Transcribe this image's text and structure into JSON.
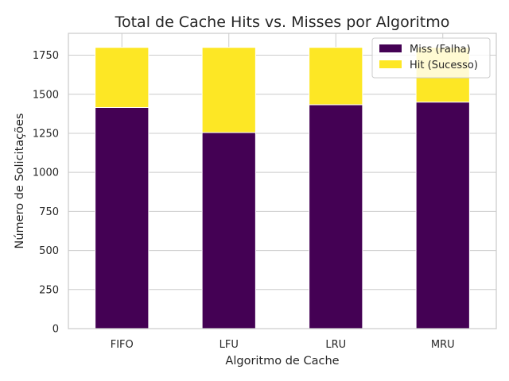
{
  "chart_data": {
    "type": "bar",
    "stacked": true,
    "title": "Total de Cache Hits vs. Misses por Algoritmo",
    "xlabel": "Algoritmo de Cache",
    "ylabel": "Número de Solicitações",
    "categories": [
      "FIFO",
      "LFU",
      "LRU",
      "MRU"
    ],
    "series": [
      {
        "name": "Miss (Falha)",
        "color": "#440154",
        "values": [
          1415,
          1255,
          1433,
          1450
        ]
      },
      {
        "name": "Hit (Sucesso)",
        "color": "#fde725",
        "values": [
          385,
          545,
          367,
          350
        ]
      }
    ],
    "ylim": [
      0,
      1890
    ],
    "yticks": [
      0,
      250,
      500,
      750,
      1000,
      1250,
      1500,
      1750
    ],
    "grid": true,
    "legend": "top-right"
  }
}
